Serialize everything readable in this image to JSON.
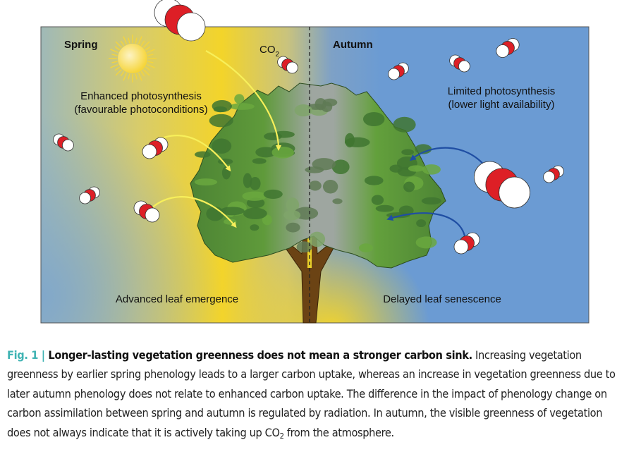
{
  "figure": {
    "labels": {
      "spring": "Spring",
      "autumn": "Autumn",
      "co2_main": "CO",
      "co2_sub": "2",
      "enhanced_line1": "Enhanced photosynthesis",
      "enhanced_line2": "(favourable photoconditions)",
      "limited_line1": "Limited photosynthesis",
      "limited_line2": "(lower light availability)",
      "advanced": "Advanced leaf emergence",
      "delayed": "Delayed leaf senescence"
    },
    "colors": {
      "spring_yellow": "#f3d42a",
      "autumn_blue": "#6b9bd3",
      "co2_red": "#dd1f26",
      "yellow_arrow": "#f7ef5a",
      "blue_arrow": "#1f4ea3",
      "leaf_dark": "#3f7530",
      "leaf_light": "#6aa83e",
      "trunk": "#6b4314"
    }
  },
  "caption": {
    "fig_label": "Fig. 1 | ",
    "title": "Longer-lasting vegetation greenness does not mean a stronger carbon sink.",
    "body_1": " Increasing vegetation greenness by earlier spring phenology leads to a larger carbon uptake, whereas an increase in vegetation greenness due to later autumn phenology does not relate to enhanced carbon uptake. The difference in the impact of phenology change on carbon assimilation between spring and autumn is regulated by radiation. In autumn, the visible greenness of vegetation does not always indicate that it is actively taking up CO",
    "body_sub": "2",
    "body_2": " from the atmosphere."
  }
}
